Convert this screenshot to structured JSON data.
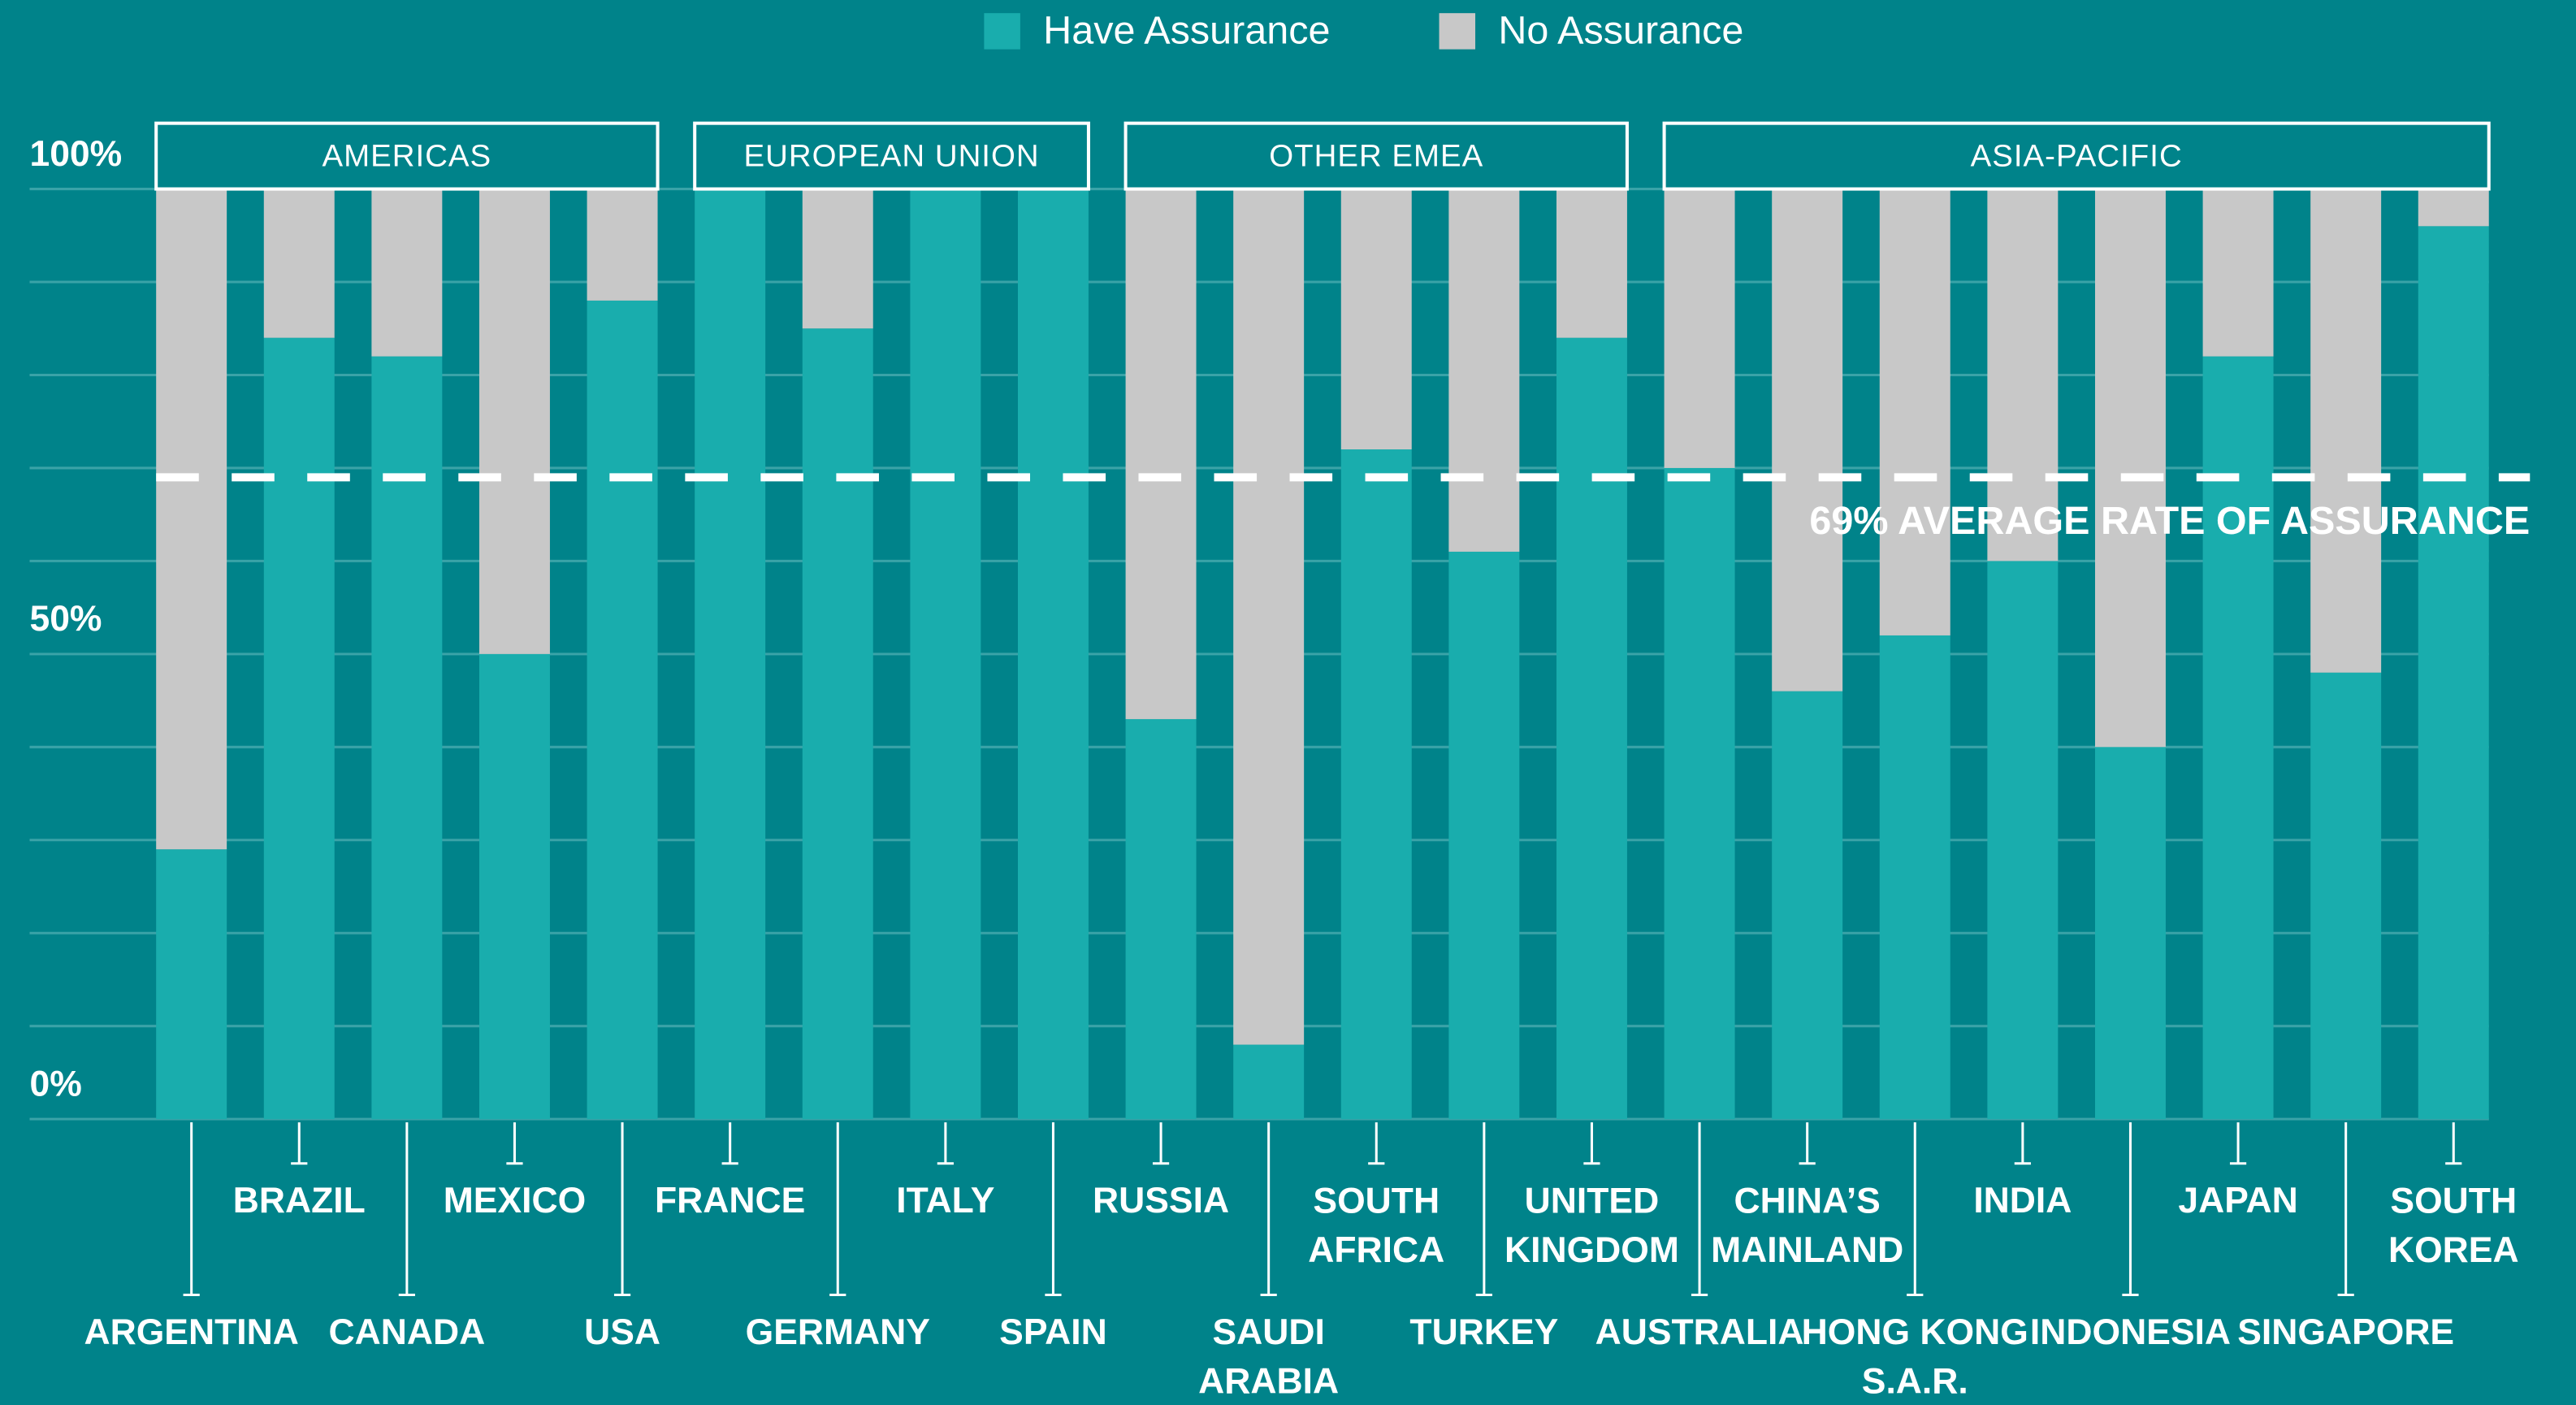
{
  "chart_data": {
    "type": "stacked_bar",
    "categories": [
      "ARGENTINA",
      "BRAZIL",
      "CANADA",
      "MEXICO",
      "USA",
      "FRANCE",
      "GERMANY",
      "ITALY",
      "SPAIN",
      "RUSSIA",
      "SAUDI\nARABIA",
      "SOUTH\nAFRICA",
      "TURKEY",
      "UNITED\nKINGDOM",
      "AUSTRALIA",
      "CHINA’S\nMAINLAND",
      "HONG KONG\nS.A.R.",
      "INDIA",
      "INDONESIA",
      "JAPAN",
      "SINGAPORE",
      "SOUTH\nKOREA"
    ],
    "groups": [
      {
        "label": "AMERICAS",
        "count": 5
      },
      {
        "label": "EUROPEAN UNION",
        "count": 4
      },
      {
        "label": "OTHER EMEA",
        "count": 5
      },
      {
        "label": "ASIA-PACIFIC",
        "count": 8
      }
    ],
    "series": [
      {
        "name": "Have Assurance",
        "color": "#19adad",
        "values": [
          29,
          84,
          82,
          50,
          88,
          100,
          85,
          100,
          100,
          43,
          8,
          72,
          61,
          84,
          70,
          46,
          52,
          60,
          40,
          82,
          48,
          96
        ]
      },
      {
        "name": "No Assurance",
        "color": "#c8c8c8",
        "values": [
          71,
          16,
          18,
          50,
          12,
          0,
          15,
          0,
          0,
          57,
          92,
          28,
          39,
          16,
          30,
          54,
          48,
          40,
          60,
          18,
          52,
          4
        ]
      }
    ],
    "ylim": [
      0,
      100
    ],
    "yticks": [
      {
        "value": 0,
        "label": "0%"
      },
      {
        "value": 50,
        "label": "50%"
      },
      {
        "value": 100,
        "label": "100%"
      }
    ],
    "minor_yticks": [
      10,
      20,
      30,
      40,
      60,
      70,
      80,
      90
    ],
    "grid": true,
    "reference_line": {
      "value": 69,
      "label": "69% AVERAGE RATE OF ASSURANCE"
    },
    "legend": "top"
  }
}
